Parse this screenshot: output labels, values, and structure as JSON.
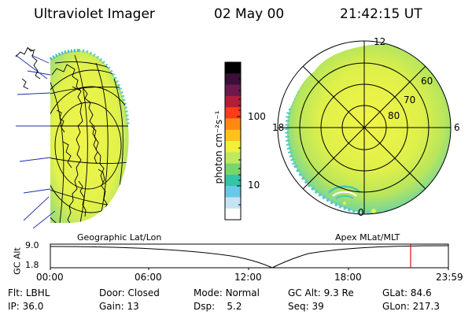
{
  "header": {
    "instrument": "Ultraviolet Imager",
    "date": "02 May 00",
    "time": "21:42:15 UT"
  },
  "colorbar": {
    "unit_label": "photon cm⁻²s⁻¹",
    "tick_labels": [
      "100",
      "10"
    ],
    "colors": [
      "#000000",
      "#3a0f3a",
      "#6c1a4d",
      "#b01e3a",
      "#ff3b1a",
      "#ff8a10",
      "#ffc21a",
      "#f2f03a",
      "#bfe860",
      "#79d66a",
      "#34c4a8",
      "#69c8e8",
      "#c7e3f2",
      "#ffffff"
    ]
  },
  "left_panel": {
    "caption": "Geographic Lat/Lon",
    "fill_color": "#e4f24a"
  },
  "right_panel": {
    "caption": "Apex MLat/MLT",
    "mlt_labels": {
      "top": "12",
      "left": "18",
      "right": "6",
      "bottom": "0"
    },
    "lat_labels": [
      "60",
      "70",
      "80"
    ],
    "fill_color": "#e4f24a"
  },
  "timeline": {
    "ylabel": "GC Alt",
    "y_ticks": [
      "9.0",
      "1.8"
    ],
    "x_ticks": [
      "00:00",
      "06:00",
      "12:00",
      "18:00",
      "23:59"
    ],
    "current_marker_color": "#e01010"
  },
  "status": {
    "row1": [
      {
        "key": "Flt:",
        "value": "LBHL"
      },
      {
        "key": "Door:",
        "value": "Closed"
      },
      {
        "key": "Mode:",
        "value": "Normal"
      },
      {
        "key": "GC Alt:",
        "value": "9.3 Re"
      },
      {
        "key": "GLat:",
        "value": "84.6"
      }
    ],
    "row2": [
      {
        "key": "IP:",
        "value": "36.0"
      },
      {
        "key": "Gain:",
        "value": "13"
      },
      {
        "key": "Dsp:",
        "value": "5.2"
      },
      {
        "key": "Seq:",
        "value": "39"
      },
      {
        "key": "GLon:",
        "value": "217.3"
      }
    ]
  }
}
